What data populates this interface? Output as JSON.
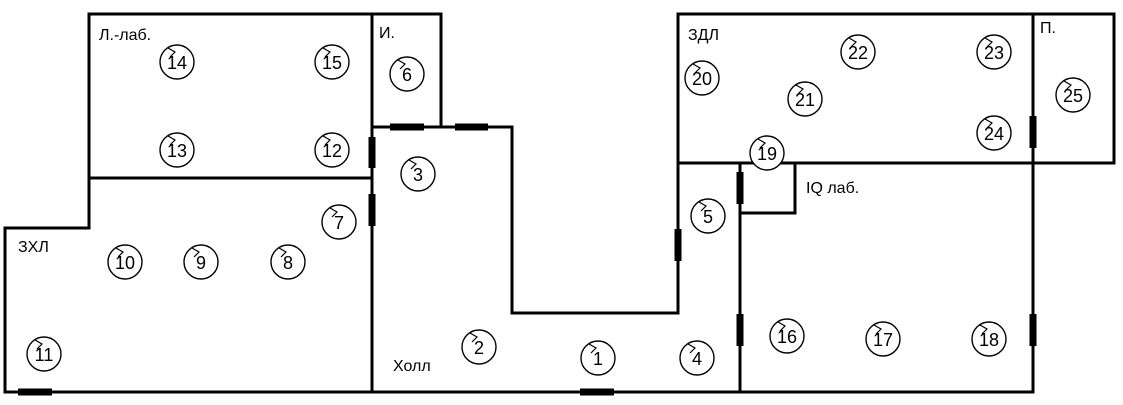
{
  "rooms": [
    {
      "id": "l-lab",
      "label": "Л.-лаб."
    },
    {
      "id": "i",
      "label": "И."
    },
    {
      "id": "zdl",
      "label": "ЗДЛ"
    },
    {
      "id": "p",
      "label": "П."
    },
    {
      "id": "iq-lab",
      "label": "IQ лаб."
    },
    {
      "id": "zhl",
      "label": "ЗХЛ"
    },
    {
      "id": "holl",
      "label": "Холл"
    }
  ],
  "markers": [
    "1",
    "2",
    "3",
    "4",
    "5",
    "6",
    "7",
    "8",
    "9",
    "10",
    "11",
    "12",
    "13",
    "14",
    "15",
    "16",
    "17",
    "18",
    "19",
    "20",
    "21",
    "22",
    "23",
    "24",
    "25"
  ]
}
